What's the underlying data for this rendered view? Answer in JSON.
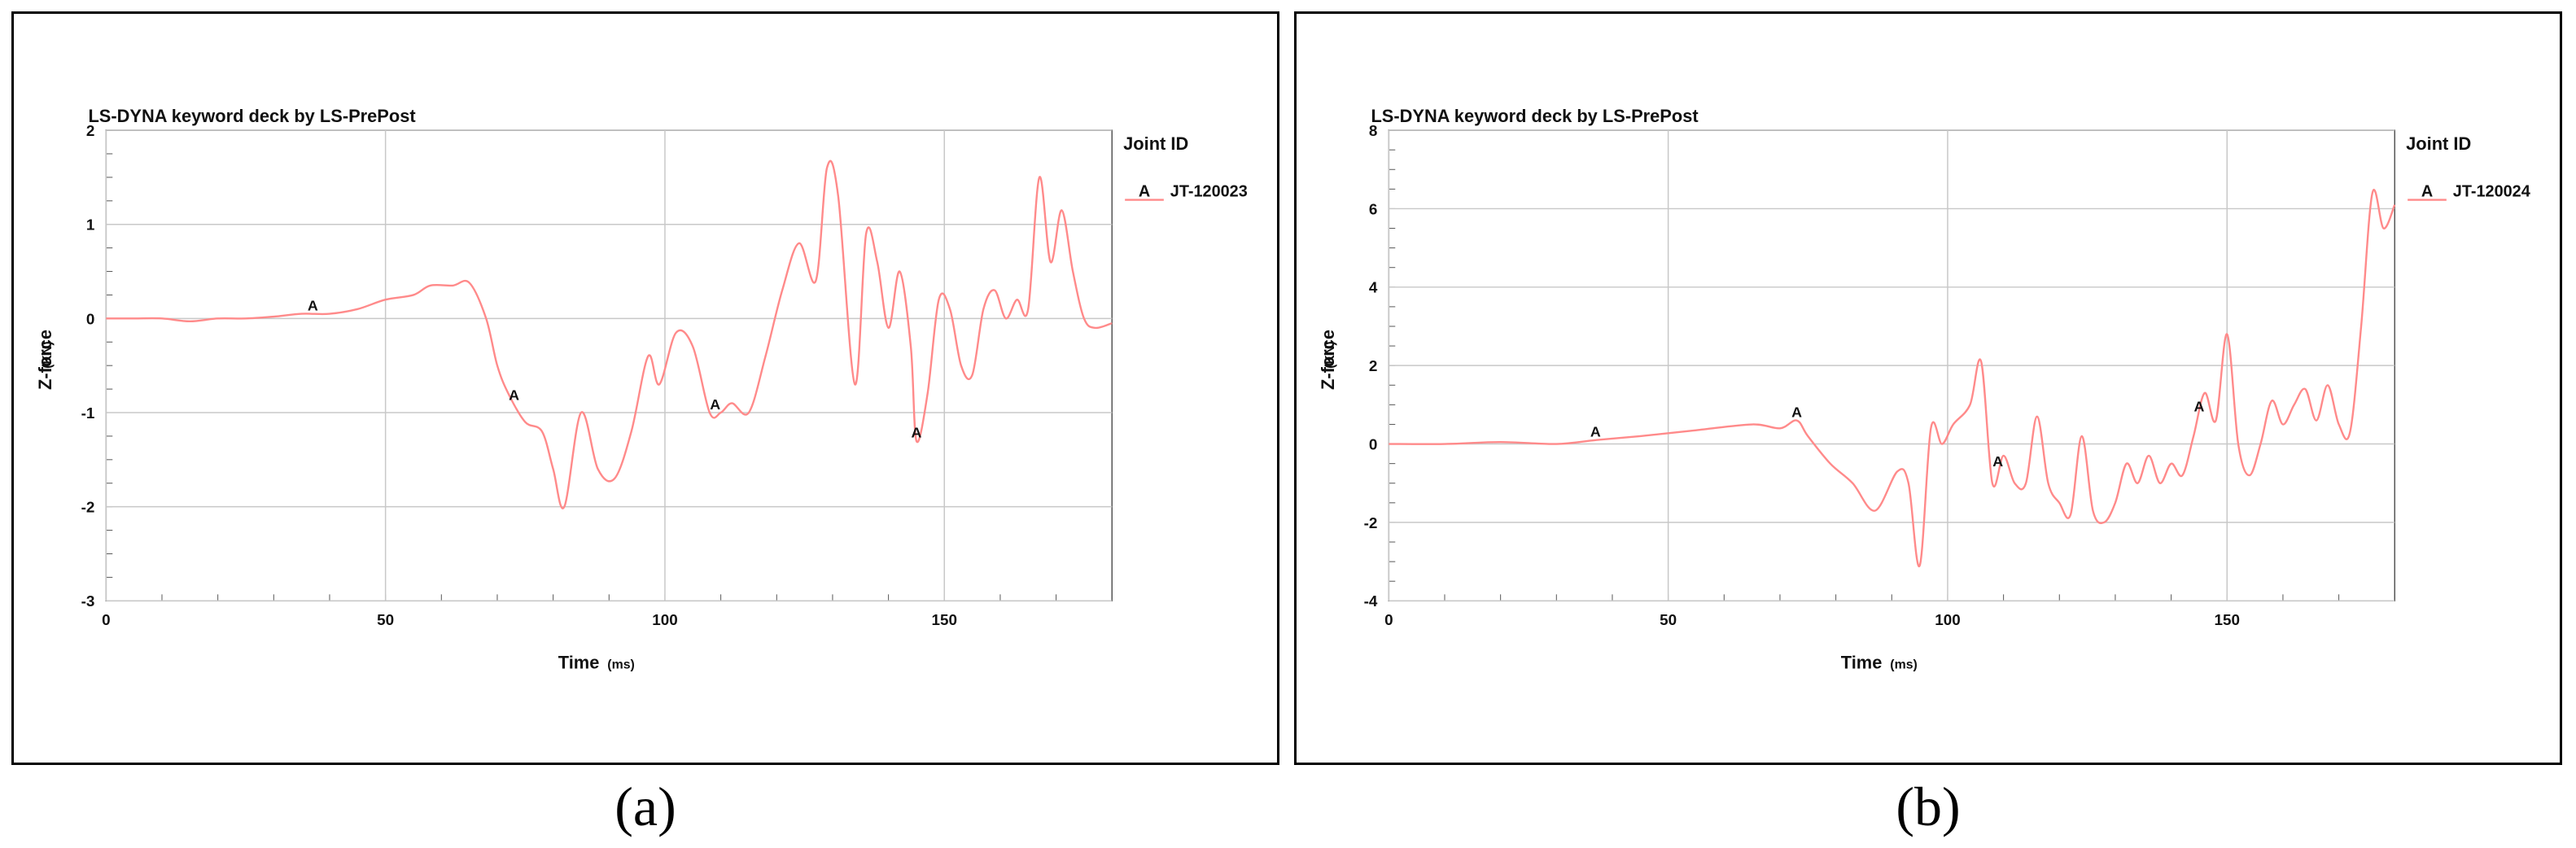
{
  "chart_data": [
    {
      "type": "line",
      "caption": "(a)",
      "title": "LS-DYNA keyword deck by LS-PrePost",
      "xlabel": "Time",
      "xunit": "(ms)",
      "ylabel": "Z-force",
      "yunit": "(KN)",
      "xlim": [
        0,
        180
      ],
      "ylim": [
        -3,
        2
      ],
      "xticks": [
        0,
        50,
        100,
        150
      ],
      "yticks": [
        -3,
        -2,
        -1,
        0,
        1,
        2
      ],
      "grid": true,
      "legend_title": "Joint ID",
      "legend_position": "top-right",
      "series": [
        {
          "name": "JT-120023",
          "marker": "A",
          "color": "#ff8a8a",
          "marker_x": [
            37,
            73,
            109,
            145
          ],
          "x": [
            0,
            5,
            10,
            15,
            20,
            25,
            30,
            35,
            40,
            45,
            50,
            55,
            58,
            62,
            65,
            68,
            70,
            72,
            75,
            78,
            80,
            82,
            85,
            88,
            91,
            94,
            97,
            99,
            102,
            105,
            108,
            110,
            112,
            115,
            118,
            121,
            124,
            127,
            129,
            131,
            134,
            136,
            138,
            140,
            142,
            144,
            145,
            147,
            149,
            151,
            153,
            155,
            157,
            159,
            161,
            163,
            165,
            167,
            169,
            171,
            173,
            175,
            177,
            180
          ],
          "y": [
            0,
            0,
            0,
            -0.03,
            0,
            0,
            0.02,
            0.05,
            0.05,
            0.1,
            0.2,
            0.25,
            0.35,
            0.35,
            0.38,
            0,
            -0.5,
            -0.8,
            -1.1,
            -1.2,
            -1.6,
            -2.0,
            -1.0,
            -1.6,
            -1.7,
            -1.2,
            -0.4,
            -0.7,
            -0.15,
            -0.3,
            -1.0,
            -1.0,
            -0.9,
            -1.0,
            -0.4,
            0.3,
            0.8,
            0.4,
            1.6,
            1.3,
            -0.7,
            0.9,
            0.6,
            -0.1,
            0.5,
            -0.3,
            -1.3,
            -0.8,
            0.2,
            0.1,
            -0.5,
            -0.6,
            0.1,
            0.3,
            0.0,
            0.2,
            0.1,
            1.5,
            0.6,
            1.15,
            0.5,
            0,
            -0.1,
            -0.05
          ]
        }
      ]
    },
    {
      "type": "line",
      "caption": "(b)",
      "title": "LS-DYNA keyword deck by LS-PrePost",
      "xlabel": "Time",
      "xunit": "(ms)",
      "ylabel": "Z-force",
      "yunit": "(KN)",
      "xlim": [
        0,
        180
      ],
      "ylim": [
        -4,
        8
      ],
      "xticks": [
        0,
        50,
        100,
        150
      ],
      "yticks": [
        -4,
        -2,
        0,
        2,
        4,
        6,
        8
      ],
      "grid": true,
      "legend_title": "Joint ID",
      "legend_position": "top-right",
      "series": [
        {
          "name": "JT-120024",
          "marker": "A",
          "color": "#ff8a8a",
          "marker_x": [
            37,
            73,
            109,
            145
          ],
          "x": [
            0,
            10,
            20,
            30,
            37,
            45,
            55,
            65,
            70,
            73,
            75,
            79,
            83,
            87,
            91,
            93,
            95,
            97,
            99,
            101,
            104,
            106,
            108,
            110,
            112,
            114,
            116,
            118,
            120,
            122,
            124,
            126,
            128,
            130,
            132,
            134,
            136,
            138,
            140,
            142,
            144,
            146,
            148,
            150,
            152,
            154,
            156,
            158,
            160,
            162,
            164,
            166,
            168,
            170,
            172,
            174,
            176,
            178,
            180
          ],
          "y": [
            0,
            0,
            0.05,
            0,
            0.1,
            0.2,
            0.35,
            0.5,
            0.4,
            0.6,
            0.2,
            -0.5,
            -1.0,
            -1.7,
            -0.7,
            -1.0,
            -3.1,
            0.4,
            0.0,
            0.5,
            1.0,
            2.1,
            -1.0,
            -0.3,
            -1.0,
            -1.0,
            0.7,
            -1.0,
            -1.5,
            -1.8,
            0.2,
            -1.7,
            -2.0,
            -1.5,
            -0.5,
            -1.0,
            -0.3,
            -1.0,
            -0.5,
            -0.8,
            0.2,
            1.3,
            0.6,
            2.8,
            0.0,
            -0.8,
            0.0,
            1.1,
            0.5,
            1.0,
            1.4,
            0.6,
            1.5,
            0.5,
            0.3,
            3.0,
            6.4,
            5.5,
            6.1
          ]
        }
      ]
    }
  ]
}
